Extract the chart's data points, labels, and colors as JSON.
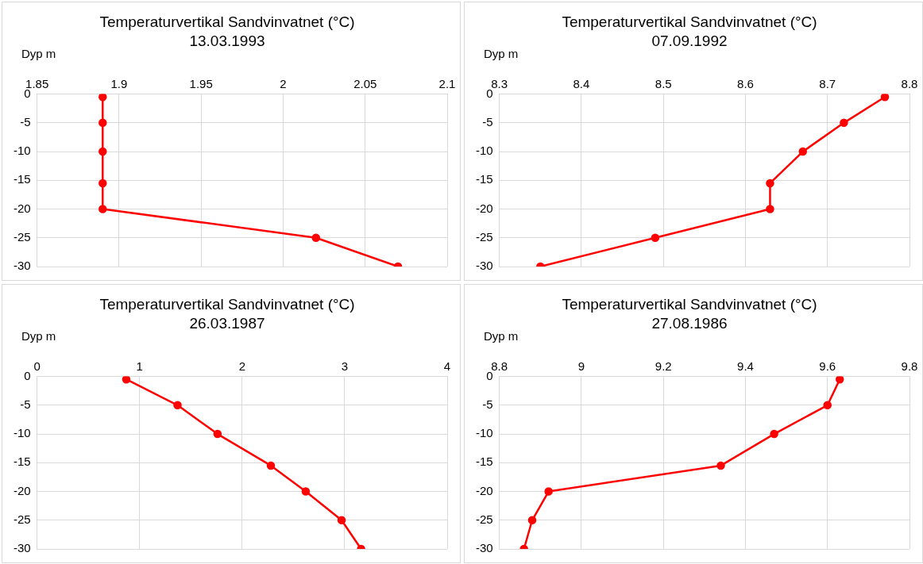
{
  "chart_data": [
    {
      "type": "line",
      "title": "Temperaturvertikal Sandvinvatnet (°C)",
      "subtitle": "13.03.1993",
      "ylabel": "Dyp m",
      "xlim": [
        1.85,
        2.1
      ],
      "xticks": [
        1.85,
        1.9,
        1.95,
        2,
        2.05,
        2.1
      ],
      "ylim": [
        -30,
        0
      ],
      "yticks": [
        -30,
        -25,
        -20,
        -15,
        -10,
        -5,
        0
      ],
      "grid": true,
      "marker": "circle",
      "legend": false,
      "series": [
        {
          "color": "#ff0000",
          "x": [
            1.89,
            1.89,
            1.89,
            1.89,
            1.89,
            2.02,
            2.07
          ],
          "values": [
            -0.5,
            -5,
            -10,
            -15.5,
            -20,
            -25,
            -30
          ]
        }
      ]
    },
    {
      "type": "line",
      "title": "Temperaturvertikal Sandvinvatnet (°C)",
      "subtitle": "07.09.1992",
      "ylabel": "Dyp m",
      "xlim": [
        8.3,
        8.8
      ],
      "xticks": [
        8.3,
        8.4,
        8.5,
        8.6,
        8.7,
        8.8
      ],
      "ylim": [
        -30,
        0
      ],
      "yticks": [
        -30,
        -25,
        -20,
        -15,
        -10,
        -5,
        0
      ],
      "grid": true,
      "marker": "circle",
      "legend": false,
      "series": [
        {
          "color": "#ff0000",
          "x": [
            8.77,
            8.72,
            8.67,
            8.63,
            8.63,
            8.49,
            8.35
          ],
          "values": [
            -0.5,
            -5,
            -10,
            -15.5,
            -20,
            -25,
            -30
          ]
        }
      ]
    },
    {
      "type": "line",
      "title": "Temperaturvertikal Sandvinvatnet (°C)",
      "subtitle": "26.03.1987",
      "ylabel": "Dyp m",
      "xlim": [
        0,
        4
      ],
      "xticks": [
        0,
        1,
        2,
        3,
        4
      ],
      "ylim": [
        -30,
        0
      ],
      "yticks": [
        -30,
        -25,
        -20,
        -15,
        -10,
        -5,
        0
      ],
      "grid": true,
      "marker": "circle",
      "legend": false,
      "series": [
        {
          "color": "#ff0000",
          "x": [
            0.87,
            1.37,
            1.76,
            2.28,
            2.62,
            2.97,
            3.16
          ],
          "values": [
            -0.5,
            -5,
            -10,
            -15.5,
            -20,
            -25,
            -30
          ]
        }
      ]
    },
    {
      "type": "line",
      "title": "Temperaturvertikal Sandvinvatnet (°C)",
      "subtitle": "27.08.1986",
      "ylabel": "Dyp m",
      "xlim": [
        8.8,
        9.8
      ],
      "xticks": [
        8.8,
        9,
        9.2,
        9.4,
        9.6,
        9.8
      ],
      "ylim": [
        -30,
        0
      ],
      "yticks": [
        -30,
        -25,
        -20,
        -15,
        -10,
        -5,
        0
      ],
      "grid": true,
      "marker": "circle",
      "legend": false,
      "series": [
        {
          "color": "#ff0000",
          "x": [
            9.63,
            9.6,
            9.47,
            9.34,
            8.92,
            8.88,
            8.86
          ],
          "values": [
            -0.5,
            -5,
            -10,
            -15.5,
            -20,
            -25,
            -30
          ]
        }
      ]
    }
  ]
}
